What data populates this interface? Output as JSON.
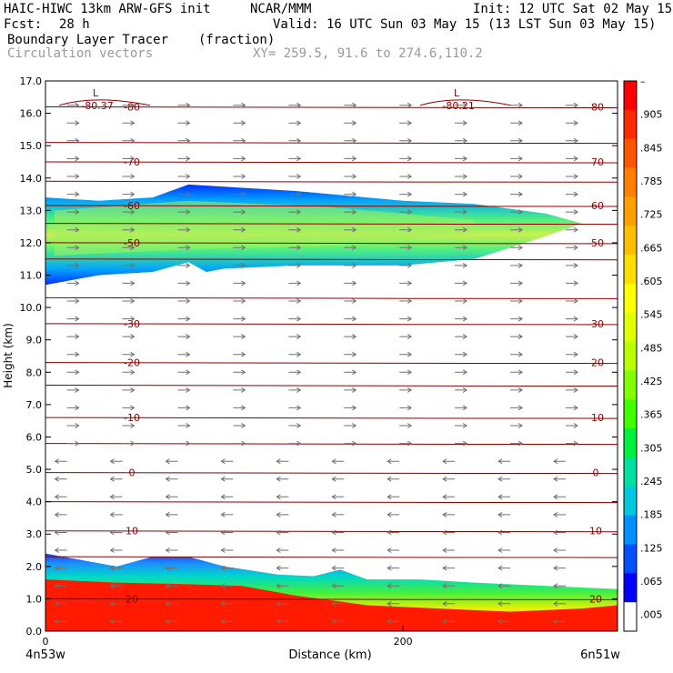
{
  "header": {
    "model": "HAIC-HIWC 13km ARW-GFS init",
    "org": "NCAR/MMM",
    "init": "Init: 12 UTC Sat 02 May 15",
    "fcst_label": "Fcst:",
    "fcst_value": "28 h",
    "valid": "Valid: 16 UTC Sun 03 May 15 (13 LST Sun 03 May 15)",
    "field": "Boundary Layer Tracer",
    "field_units": "(fraction)",
    "vectors": "Circulation vectors",
    "xy": "XY= 259.5, 91.6 to 274.6,110.2"
  },
  "chart_data": {
    "type": "heatmap",
    "title": "Boundary Layer Tracer",
    "units": "(fraction)",
    "xlabel": "Distance (km)",
    "ylabel": "Height (km)",
    "xlim": [
      0,
      320
    ],
    "ylim": [
      0,
      17
    ],
    "x_ticks": [
      {
        "value": 0,
        "label": "0"
      },
      {
        "value": 200,
        "label": "200"
      }
    ],
    "x_end_labels": {
      "left": "4n53w",
      "right": "6n51w"
    },
    "y_ticks": [
      "0.0",
      "1.0",
      "2.0",
      "3.0",
      "4.0",
      "5.0",
      "6.0",
      "7.0",
      "8.0",
      "9.0",
      "10.0",
      "11.0",
      "12.0",
      "13.0",
      "14.0",
      "15.0",
      "16.0",
      "17.0"
    ],
    "colorbar": {
      "labels": [
        "–",
        ".905",
        ".845",
        ".785",
        ".725",
        ".665",
        ".605",
        ".545",
        ".485",
        ".425",
        ".365",
        ".305",
        ".245",
        ".185",
        ".125",
        ".065",
        ".005"
      ],
      "colors": [
        "#ff0000",
        "#ff2a00",
        "#ff5500",
        "#ff7f00",
        "#ff9f00",
        "#ffbf00",
        "#ffdf00",
        "#ffff00",
        "#e0ff00",
        "#b8ff00",
        "#80ff00",
        "#40ff00",
        "#00f040",
        "#00e0a0",
        "#00c8e0",
        "#0090ff",
        "#0050ff",
        "#0000ff",
        "#ffffff"
      ]
    },
    "lower_layer": {
      "top_km": [
        [
          0,
          2.4
        ],
        [
          20,
          2.2
        ],
        [
          40,
          2.0
        ],
        [
          60,
          2.3
        ],
        [
          80,
          2.3
        ],
        [
          100,
          2.0
        ],
        [
          130,
          1.75
        ],
        [
          150,
          1.7
        ],
        [
          165,
          1.9
        ],
        [
          180,
          1.6
        ],
        [
          210,
          1.6
        ],
        [
          240,
          1.5
        ],
        [
          280,
          1.4
        ],
        [
          320,
          1.3
        ]
      ],
      "red_top_km": [
        [
          0,
          1.6
        ],
        [
          40,
          1.5
        ],
        [
          80,
          1.45
        ],
        [
          110,
          1.4
        ],
        [
          140,
          1.1
        ],
        [
          180,
          0.8
        ],
        [
          220,
          0.7
        ],
        [
          260,
          0.6
        ],
        [
          300,
          0.7
        ],
        [
          320,
          0.8
        ]
      ]
    },
    "upper_plume": {
      "top_km": [
        [
          0,
          13.4
        ],
        [
          30,
          13.3
        ],
        [
          60,
          13.4
        ],
        [
          80,
          13.8
        ],
        [
          140,
          13.6
        ],
        [
          200,
          13.3
        ],
        [
          240,
          13.2
        ],
        [
          280,
          12.9
        ],
        [
          300,
          12.6
        ]
      ],
      "bottom_km": [
        [
          0,
          10.7
        ],
        [
          30,
          11.0
        ],
        [
          60,
          11.1
        ],
        [
          80,
          11.4
        ],
        [
          90,
          11.1
        ],
        [
          100,
          11.2
        ],
        [
          140,
          11.3
        ],
        [
          200,
          11.3
        ],
        [
          240,
          11.5
        ],
        [
          280,
          12.2
        ],
        [
          300,
          12.6
        ]
      ],
      "core_top_km": [
        [
          5,
          13.0
        ],
        [
          80,
          13.3
        ],
        [
          160,
          13.1
        ],
        [
          240,
          12.7
        ]
      ],
      "core_bottom_km": [
        [
          5,
          11.6
        ],
        [
          80,
          11.8
        ],
        [
          160,
          11.9
        ],
        [
          240,
          12.3
        ]
      ]
    },
    "temperature_contours": [
      {
        "label": "-80",
        "y_km": 16.2
      },
      {
        "label": "-70",
        "y_km": 14.5
      },
      {
        "label": "-60",
        "y_km": 13.15
      },
      {
        "label": "-50",
        "y_km": 12.0
      },
      {
        "label": "-30",
        "y_km": 9.5
      },
      {
        "label": "-20",
        "y_km": 8.3
      },
      {
        "label": "-10",
        "y_km": 6.6
      },
      {
        "label": "0",
        "y_km": 4.9
      },
      {
        "label": "10",
        "y_km": 3.1
      },
      {
        "label": "20",
        "y_km": 1.0
      }
    ],
    "low_centers": [
      {
        "label": "L",
        "value": "-80.37",
        "x": 28,
        "y_km": 16.3
      },
      {
        "label": "L",
        "value": "-80.21",
        "x": 230,
        "y_km": 16.3
      }
    ],
    "extra_isotherm_km": [
      15.1,
      13.9,
      12.6,
      11.5,
      10.3,
      7.6,
      5.8,
      4.0,
      2.3
    ],
    "wind_direction": {
      "above_km": 5.5,
      "upper": "east",
      "lower": "west"
    }
  }
}
